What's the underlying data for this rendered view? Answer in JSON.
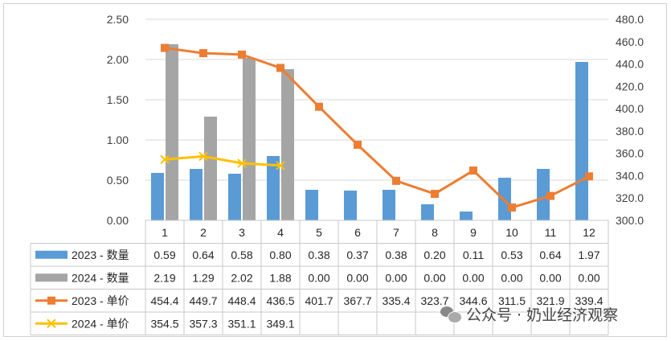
{
  "chart_data": {
    "type": "bar+line",
    "title": "",
    "categories": [
      "1",
      "2",
      "3",
      "4",
      "5",
      "6",
      "7",
      "8",
      "9",
      "10",
      "11",
      "12"
    ],
    "left_axis": {
      "min": 0,
      "max": 2.5,
      "step": 0.5,
      "ticks": [
        "0.00",
        "0.50",
        "1.00",
        "1.50",
        "2.00",
        "2.50"
      ]
    },
    "right_axis": {
      "min": 300,
      "max": 480,
      "step": 20,
      "ticks": [
        "300.0",
        "320.0",
        "340.0",
        "360.0",
        "380.0",
        "400.0",
        "420.0",
        "440.0",
        "460.0",
        "480.0"
      ]
    },
    "grid": true,
    "series": [
      {
        "name": "2023 - 数量",
        "kind": "bar",
        "axis": "left",
        "color": "#5b9bd5",
        "values": [
          0.59,
          0.64,
          0.58,
          0.8,
          0.38,
          0.37,
          0.38,
          0.2,
          0.11,
          0.53,
          0.64,
          1.97
        ],
        "labels": [
          "0.59",
          "0.64",
          "0.58",
          "0.80",
          "0.38",
          "0.37",
          "0.38",
          "0.20",
          "0.11",
          "0.53",
          "0.64",
          "1.97"
        ]
      },
      {
        "name": "2024 - 数量",
        "kind": "bar",
        "axis": "left",
        "color": "#a5a5a5",
        "values": [
          2.19,
          1.29,
          2.02,
          1.88,
          0,
          0,
          0,
          0,
          0,
          0,
          0,
          0
        ],
        "labels": [
          "2.19",
          "1.29",
          "2.02",
          "1.88",
          "0.00",
          "0.00",
          "0.00",
          "0.00",
          "0.00",
          "0.00",
          "0.00",
          "0.00"
        ]
      },
      {
        "name": "2023 - 单价",
        "kind": "line",
        "axis": "right",
        "color": "#ed7d31",
        "marker": "square",
        "values": [
          454.4,
          449.7,
          448.4,
          436.5,
          401.7,
          367.7,
          335.4,
          323.7,
          344.6,
          311.5,
          321.9,
          339.4
        ],
        "labels": [
          "454.4",
          "449.7",
          "448.4",
          "436.5",
          "401.7",
          "367.7",
          "335.4",
          "323.7",
          "344.6",
          "311.5",
          "321.9",
          "339.4"
        ]
      },
      {
        "name": "2024 - 单价",
        "kind": "line",
        "axis": "right",
        "color": "#ffc000",
        "marker": "x",
        "values": [
          354.5,
          357.3,
          351.1,
          349.1,
          null,
          null,
          null,
          null,
          null,
          null,
          null,
          null
        ],
        "labels": [
          "354.5",
          "357.3",
          "351.1",
          "349.1",
          "",
          "",
          "",
          "",
          "",
          "",
          "",
          ""
        ]
      }
    ]
  },
  "watermark": {
    "text": "公众号 · 奶业经济观察",
    "icon": "wechat-icon"
  }
}
